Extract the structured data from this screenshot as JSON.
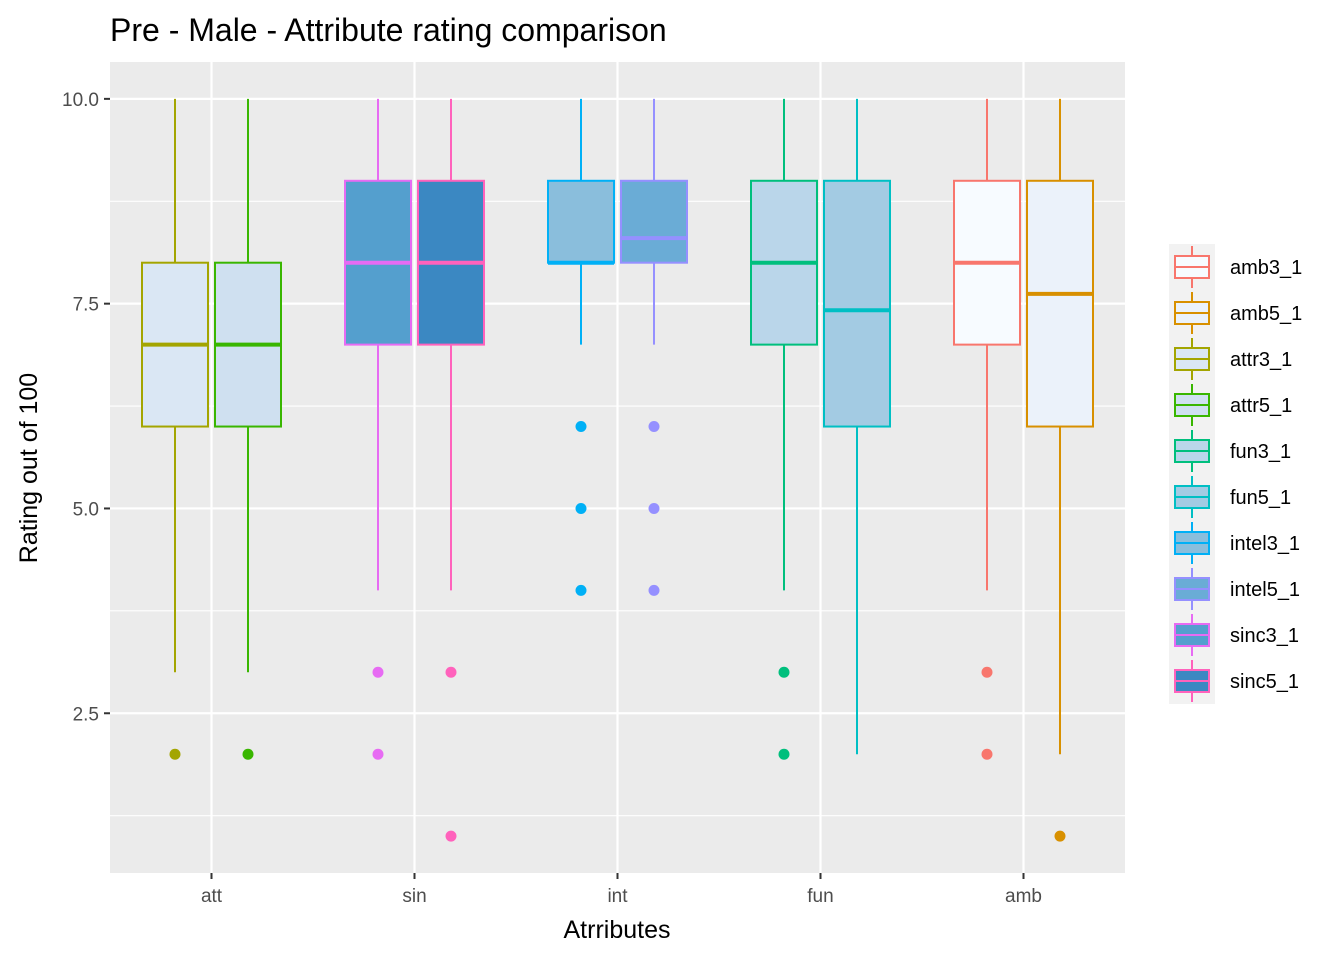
{
  "chart_data": {
    "type": "boxplot",
    "title": "Pre - Male - Attribute rating comparison",
    "xlabel": "Atrributes",
    "ylabel": "Rating out of 100",
    "ylim": [
      0.55,
      10.45
    ],
    "y_ticks": [
      2.5,
      5.0,
      7.5,
      10.0
    ],
    "y_tick_labels": [
      "2.5",
      "5.0",
      "7.5",
      "10.0"
    ],
    "categories": [
      "att",
      "sin",
      "int",
      "fun",
      "amb"
    ],
    "grid": true,
    "legend_position": "right",
    "series": [
      {
        "name": "attr3_1",
        "category": "att",
        "slot": 0,
        "color": "#A3A500",
        "fill": "#dae7f4",
        "whisker_low": 3,
        "q1": 6,
        "median": 7,
        "q3": 8,
        "whisker_high": 10,
        "outliers": [
          2
        ]
      },
      {
        "name": "attr5_1",
        "category": "att",
        "slot": 1,
        "color": "#39B600",
        "fill": "#cfe0f0",
        "whisker_low": 3,
        "q1": 6,
        "median": 7,
        "q3": 8,
        "whisker_high": 10,
        "outliers": [
          2
        ]
      },
      {
        "name": "sinc3_1",
        "category": "sin",
        "slot": 0,
        "color": "#E76BF3",
        "fill": "#549fce",
        "whisker_low": 4,
        "q1": 7,
        "median": 8,
        "q3": 9,
        "whisker_high": 10,
        "outliers": [
          3,
          2
        ]
      },
      {
        "name": "sinc5_1",
        "category": "sin",
        "slot": 1,
        "color": "#FF62BC",
        "fill": "#3b88c2",
        "whisker_low": 4,
        "q1": 7,
        "median": 8,
        "q3": 9,
        "whisker_high": 10,
        "outliers": [
          3,
          1
        ]
      },
      {
        "name": "intel3_1",
        "category": "int",
        "slot": 0,
        "color": "#00B0F6",
        "fill": "#8abedc",
        "whisker_low": 7,
        "q1": 8,
        "median": 8,
        "q3": 9,
        "whisker_high": 10,
        "outliers": [
          6,
          5,
          4
        ]
      },
      {
        "name": "intel5_1",
        "category": "int",
        "slot": 1,
        "color": "#9590FF",
        "fill": "#6aacd6",
        "whisker_low": 7,
        "q1": 8,
        "median": 8.3,
        "q3": 9,
        "whisker_high": 10,
        "outliers": [
          6,
          5,
          4
        ]
      },
      {
        "name": "fun3_1",
        "category": "fun",
        "slot": 0,
        "color": "#00BF7D",
        "fill": "#bad6ea",
        "whisker_low": 4,
        "q1": 7,
        "median": 8,
        "q3": 9,
        "whisker_high": 10,
        "outliers": [
          3,
          2
        ]
      },
      {
        "name": "fun5_1",
        "category": "fun",
        "slot": 1,
        "color": "#00BFC4",
        "fill": "#a3cbe3",
        "whisker_low": 2,
        "q1": 6,
        "median": 7.42,
        "q3": 9,
        "whisker_high": 10,
        "outliers": []
      },
      {
        "name": "amb3_1",
        "category": "amb",
        "slot": 0,
        "color": "#F8766D",
        "fill": "#f7fbff",
        "whisker_low": 4,
        "q1": 7,
        "median": 8,
        "q3": 9,
        "whisker_high": 10,
        "outliers": [
          3,
          2
        ]
      },
      {
        "name": "amb5_1",
        "category": "amb",
        "slot": 1,
        "color": "#D89000",
        "fill": "#ebf2fa",
        "whisker_low": 2,
        "q1": 6,
        "median": 7.62,
        "q3": 9,
        "whisker_high": 10,
        "outliers": [
          1
        ]
      }
    ],
    "legend_order": [
      "amb3_1",
      "amb5_1",
      "attr3_1",
      "attr5_1",
      "fun3_1",
      "fun5_1",
      "intel3_1",
      "intel5_1",
      "sinc3_1",
      "sinc5_1"
    ]
  }
}
